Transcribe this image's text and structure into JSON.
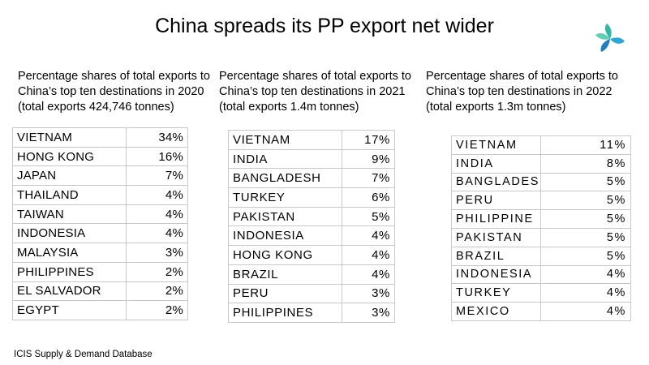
{
  "title": "China spreads its PP export net wider",
  "source": "ICIS Supply & Demand Database",
  "chart_data": [
    {
      "type": "table",
      "caption": "Percentage shares of total exports to\nChina’s top ten destinations in 2020\n(total exports 424,746 tonnes)",
      "rows": [
        {
          "country": "VIETNAM",
          "share": "34%"
        },
        {
          "country": "HONG KONG",
          "share": "16%"
        },
        {
          "country": "JAPAN",
          "share": "7%"
        },
        {
          "country": "THAILAND",
          "share": "4%"
        },
        {
          "country": "TAIWAN",
          "share": "4%"
        },
        {
          "country": "INDONESIA",
          "share": "4%"
        },
        {
          "country": "MALAYSIA",
          "share": "3%"
        },
        {
          "country": "PHILIPPINES",
          "share": "2%"
        },
        {
          "country": "EL SALVADOR",
          "share": "2%"
        },
        {
          "country": "EGYPT",
          "share": "2%"
        }
      ]
    },
    {
      "type": "table",
      "caption": "Percentage shares of total exports to\nChina’s top ten destinations in 2021\n(total exports 1.4m tonnes)",
      "rows": [
        {
          "country": "VIETNAM",
          "share": "17%"
        },
        {
          "country": "INDIA",
          "share": "9%"
        },
        {
          "country": "BANGLADESH",
          "share": "7%"
        },
        {
          "country": "TURKEY",
          "share": "6%"
        },
        {
          "country": "PAKISTAN",
          "share": "5%"
        },
        {
          "country": "INDONESIA",
          "share": "4%"
        },
        {
          "country": "HONG KONG",
          "share": "4%"
        },
        {
          "country": "BRAZIL",
          "share": "4%"
        },
        {
          "country": "PERU",
          "share": "3%"
        },
        {
          "country": "PHILIPPINES",
          "share": "3%"
        }
      ]
    },
    {
      "type": "table",
      "caption": "Percentage shares of total exports to\nChina’s top ten destinations in 2022\n(total exports 1.3m tonnes)",
      "rows": [
        {
          "country": "VIETNAM",
          "share": "11%"
        },
        {
          "country": "INDIA",
          "share": "8%"
        },
        {
          "country": "BANGLADES",
          "share": "5%"
        },
        {
          "country": "PERU",
          "share": "5%"
        },
        {
          "country": "PHILIPPINE",
          "share": "5%"
        },
        {
          "country": "PAKISTAN",
          "share": "5%"
        },
        {
          "country": "BRAZIL",
          "share": "5%"
        },
        {
          "country": "INDONESIA",
          "share": "4%"
        },
        {
          "country": "TURKEY",
          "share": "4%"
        },
        {
          "country": "MEXICO",
          "share": "4%"
        }
      ]
    }
  ]
}
